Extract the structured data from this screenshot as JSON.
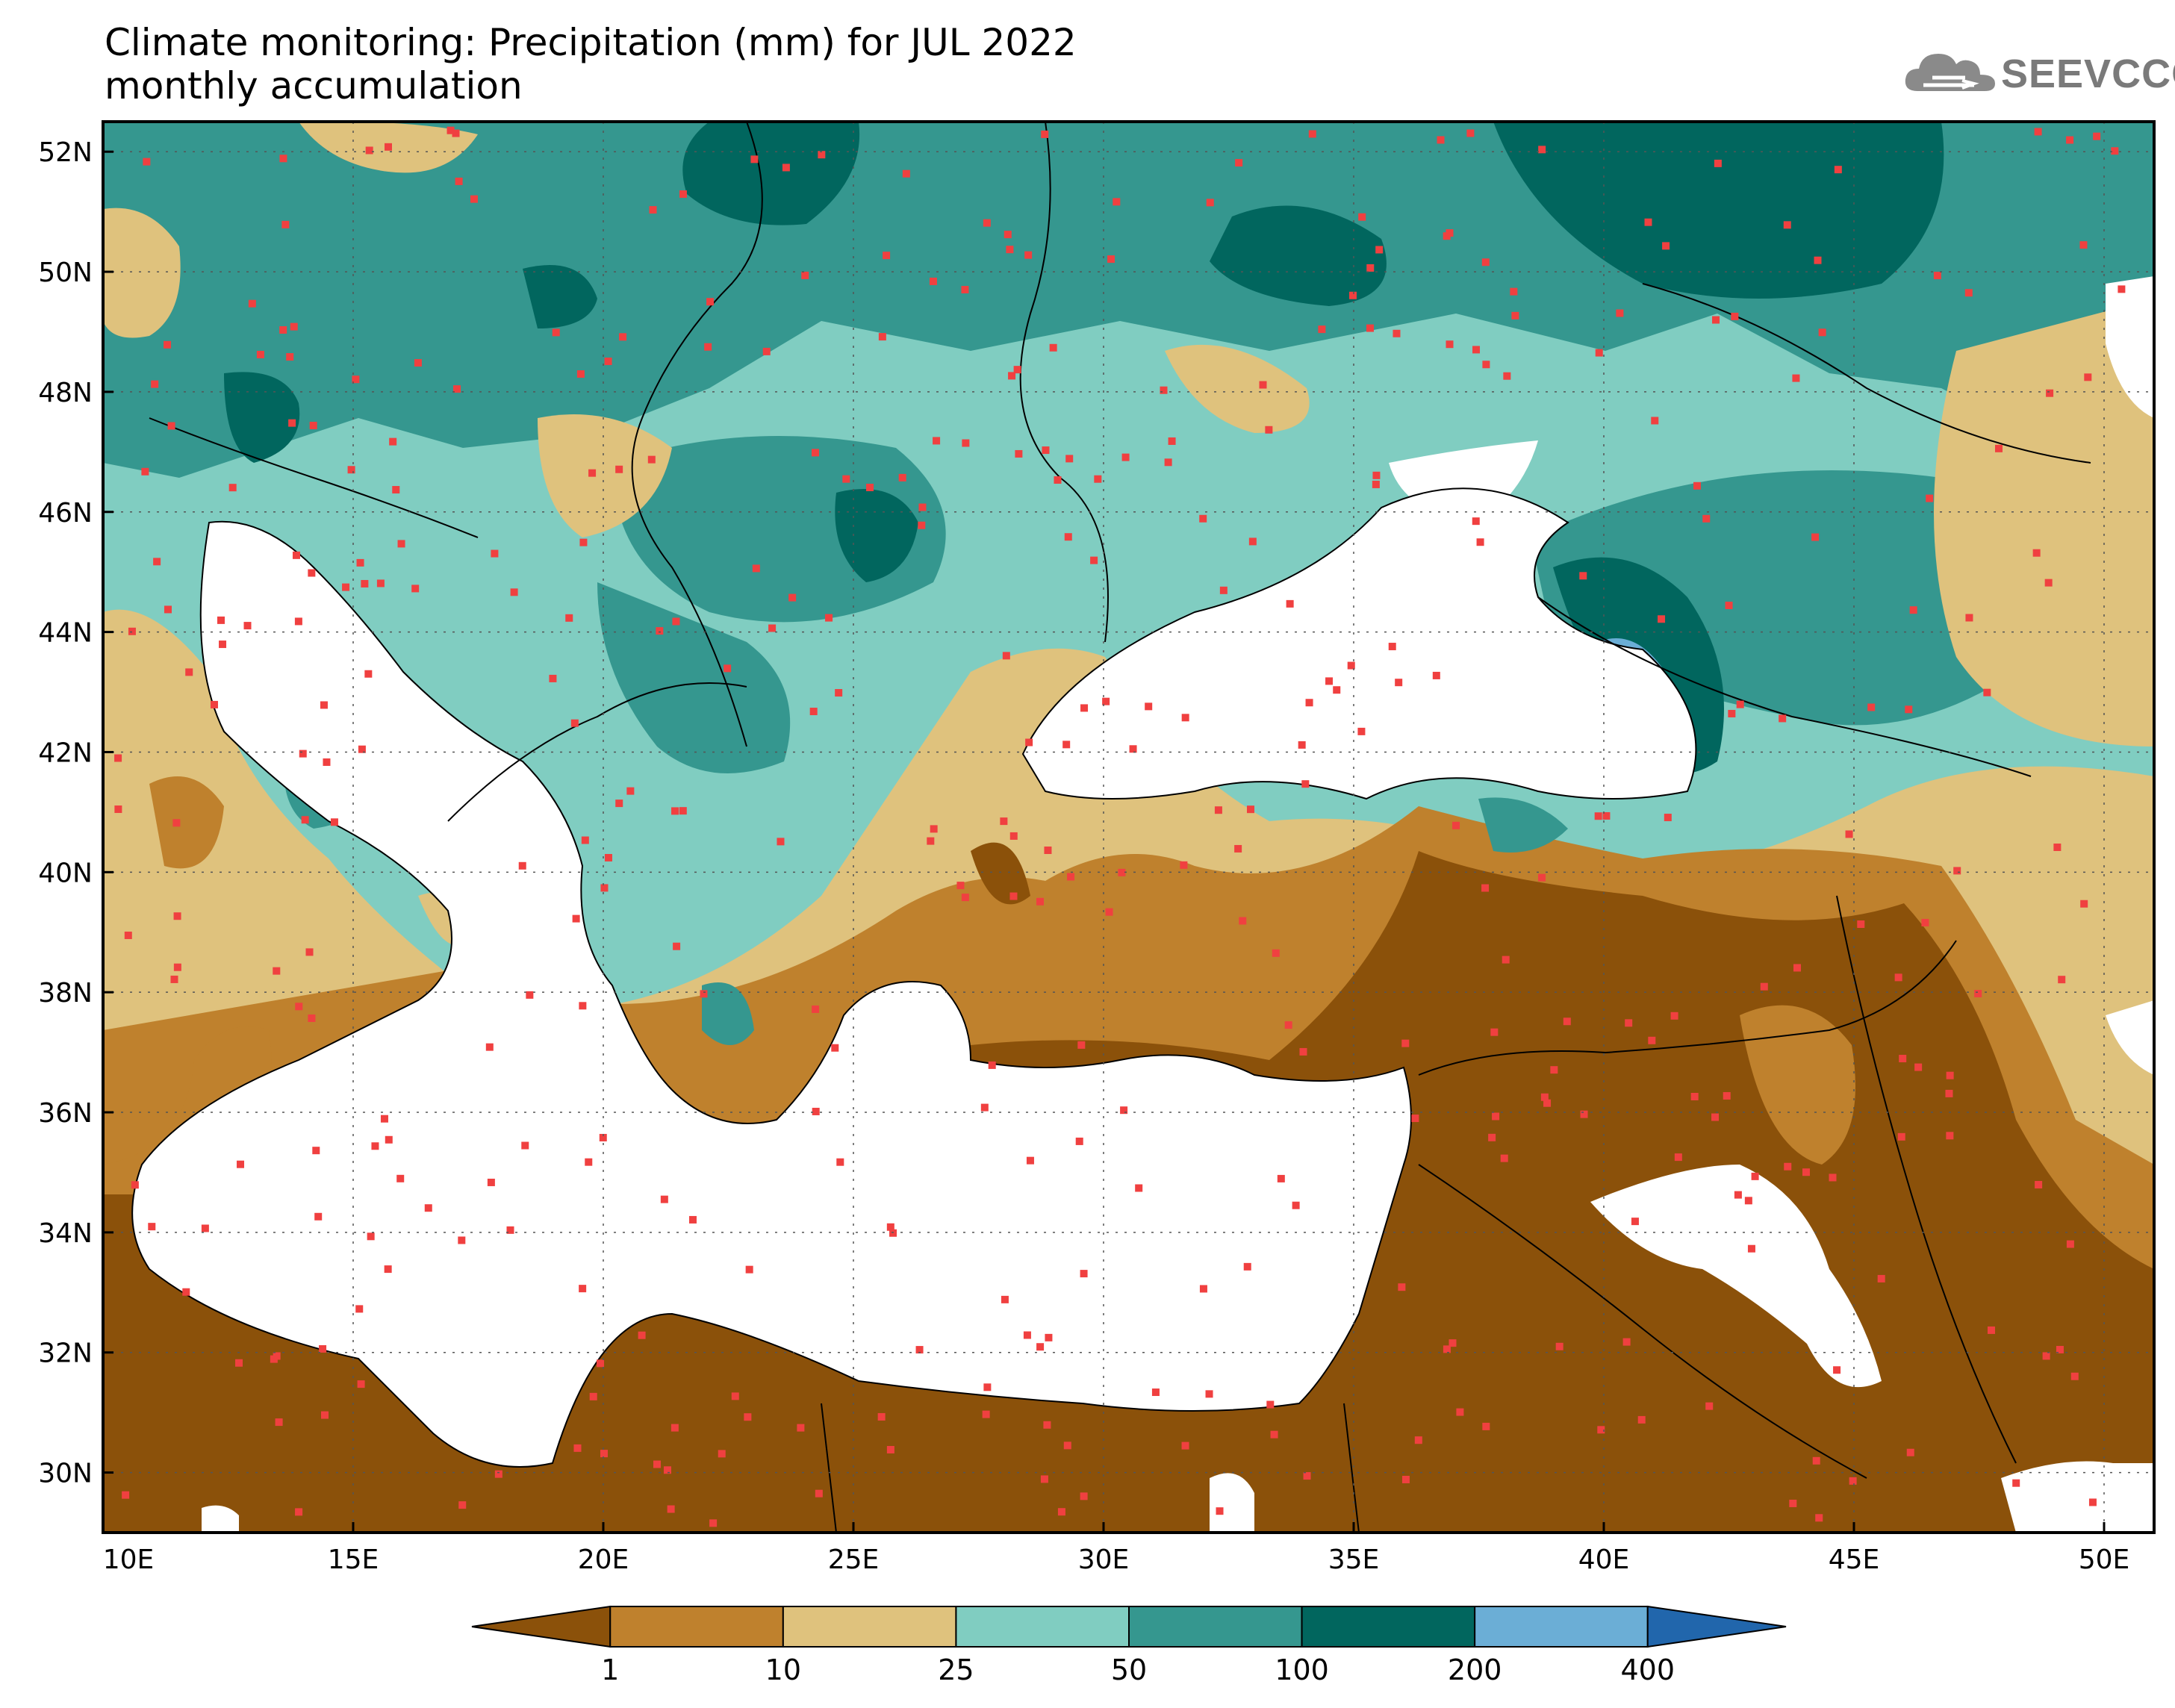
{
  "header": {
    "title_line1": "Climate monitoring: Precipitation (mm) for JUL 2022",
    "title_line2": "monthly accumulation"
  },
  "logo": {
    "text": "SEEVCCC",
    "icon": "cloud-icon"
  },
  "map": {
    "lon_range": [
      10,
      51
    ],
    "lat_range": [
      29,
      52.5
    ],
    "lon_ticks": [
      "10E",
      "15E",
      "20E",
      "25E",
      "30E",
      "35E",
      "40E",
      "45E",
      "50E"
    ],
    "lat_ticks": [
      "52N",
      "50N",
      "48N",
      "46N",
      "44N",
      "42N",
      "40N",
      "38N",
      "36N",
      "34N",
      "32N",
      "30N"
    ],
    "grid": "dotted"
  },
  "legend": {
    "labels": [
      "1",
      "10",
      "25",
      "50",
      "100",
      "200",
      "400"
    ],
    "colors": [
      "#8b510a",
      "#bf812d",
      "#dfc27d",
      "#80cdc1",
      "#35978f",
      "#01665e",
      "#6baed6",
      "#2166ac"
    ]
  },
  "colors": {
    "sea": "#ffffff",
    "station": "#f04040",
    "border": "#000000"
  }
}
